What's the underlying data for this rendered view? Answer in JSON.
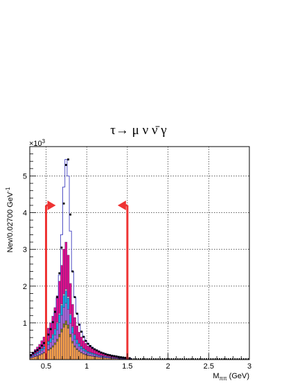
{
  "chart_data": {
    "type": "bar",
    "title": "τ→ μ ν ν̄ γ",
    "xlabel": "M_ππ (GeV)",
    "xlabel_main": "M",
    "xlabel_sub": "ππ",
    "xlabel_unit": "(GeV)",
    "ylabel": "Nev/0.02700 GeV⁻¹",
    "ylabel_main": "Nev/0.02700 GeV",
    "ylabel_sup": "-1",
    "y_exponent_label": "×10³",
    "y_exponent_base": "×10",
    "y_exponent_power": "3",
    "xlim": [
      0.3,
      3.0
    ],
    "ylim": [
      0,
      5.8
    ],
    "xticks": [
      0.5,
      1,
      1.5,
      2,
      2.5,
      3
    ],
    "xtick_labels": [
      "0.5",
      "1",
      "1.5",
      "2",
      "2.5",
      "3"
    ],
    "yticks": [
      1,
      2,
      3,
      4,
      5
    ],
    "ytick_labels": [
      "1",
      "2",
      "3",
      "4",
      "5"
    ],
    "grid": true,
    "bin_width": 0.027,
    "x_bin_centers": [
      0.3135,
      0.3405,
      0.3675,
      0.3945,
      0.4215,
      0.4485,
      0.4755,
      0.5025,
      0.5295,
      0.5565,
      0.5835,
      0.6105,
      0.6375,
      0.6645,
      0.6915,
      0.7185,
      0.7455,
      0.7725,
      0.7995,
      0.8265,
      0.8535,
      0.8805,
      0.9075,
      0.9345,
      0.9615,
      0.9885,
      1.0155,
      1.0425,
      1.0695,
      1.0965,
      1.1235,
      1.1505,
      1.1775,
      1.2045,
      1.2315,
      1.2585,
      1.2855,
      1.3125,
      1.3395,
      1.3665,
      1.3935,
      1.4205,
      1.4475,
      1.4745,
      1.5015,
      1.5285
    ],
    "series": [
      {
        "name": "",
        "type": "stacked",
        "color": "#f5a048",
        "values": [
          0.04,
          0.06,
          0.08,
          0.1,
          0.12,
          0.15,
          0.18,
          0.21,
          0.25,
          0.29,
          0.34,
          0.41,
          0.5,
          0.62,
          0.75,
          0.88,
          0.95,
          0.85,
          0.62,
          0.45,
          0.34,
          0.27,
          0.22,
          0.18,
          0.15,
          0.13,
          0.11,
          0.1,
          0.09,
          0.08,
          0.07,
          0.06,
          0.055,
          0.05,
          0.045,
          0.04,
          0.035,
          0.03,
          0.027,
          0.024,
          0.02,
          0.018,
          0.016,
          0.014,
          0.012,
          0.01
        ]
      },
      {
        "name": "",
        "type": "stacked",
        "color": "#7a7a1e",
        "values": [
          0.005,
          0.007,
          0.01,
          0.012,
          0.014,
          0.017,
          0.02,
          0.024,
          0.028,
          0.033,
          0.04,
          0.048,
          0.058,
          0.072,
          0.086,
          0.1,
          0.11,
          0.1,
          0.07,
          0.05,
          0.038,
          0.03,
          0.025,
          0.02,
          0.017,
          0.015,
          0.012,
          0.011,
          0.01,
          0.009,
          0.008,
          0.007,
          0.006,
          0.005,
          0.005,
          0.004,
          0.004,
          0.003,
          0.003,
          0.003,
          0.002,
          0.002,
          0.002,
          0.002,
          0.001,
          0.001
        ]
      },
      {
        "name": "",
        "type": "stacked",
        "color": "#a868d8",
        "values": [
          0.02,
          0.03,
          0.04,
          0.05,
          0.06,
          0.075,
          0.09,
          0.105,
          0.125,
          0.145,
          0.17,
          0.205,
          0.25,
          0.31,
          0.37,
          0.44,
          0.47,
          0.42,
          0.3,
          0.22,
          0.17,
          0.135,
          0.11,
          0.09,
          0.075,
          0.065,
          0.055,
          0.05,
          0.045,
          0.04,
          0.035,
          0.03,
          0.027,
          0.025,
          0.022,
          0.02,
          0.018,
          0.015,
          0.013,
          0.012,
          0.01,
          0.009,
          0.008,
          0.007,
          0.006,
          0.005
        ]
      },
      {
        "name": "",
        "type": "stacked",
        "color": "#1aa8e0",
        "values": [
          0.015,
          0.02,
          0.03,
          0.035,
          0.045,
          0.055,
          0.065,
          0.075,
          0.09,
          0.105,
          0.125,
          0.15,
          0.18,
          0.22,
          0.27,
          0.32,
          0.34,
          0.3,
          0.22,
          0.16,
          0.12,
          0.1,
          0.08,
          0.065,
          0.055,
          0.047,
          0.04,
          0.036,
          0.032,
          0.028,
          0.025,
          0.022,
          0.02,
          0.018,
          0.016,
          0.014,
          0.012,
          0.011,
          0.01,
          0.009,
          0.008,
          0.007,
          0.006,
          0.005,
          0.004,
          0.004
        ]
      },
      {
        "name": "",
        "type": "stacked",
        "color": "#c8c8c8",
        "values": [
          0.003,
          0.004,
          0.005,
          0.006,
          0.007,
          0.008,
          0.01,
          0.012,
          0.014,
          0.016,
          0.019,
          0.023,
          0.028,
          0.034,
          0.04,
          0.047,
          0.05,
          0.045,
          0.033,
          0.024,
          0.018,
          0.015,
          0.012,
          0.01,
          0.008,
          0.007,
          0.006,
          0.005,
          0.005,
          0.004,
          0.004,
          0.003,
          0.003,
          0.003,
          0.002,
          0.002,
          0.002,
          0.002,
          0.001,
          0.001,
          0.001,
          0.001,
          0.001,
          0.001,
          0.001,
          0.001
        ]
      },
      {
        "name": "",
        "type": "stacked",
        "color": "#e0108c",
        "values": [
          0.06,
          0.085,
          0.11,
          0.14,
          0.17,
          0.21,
          0.25,
          0.3,
          0.35,
          0.41,
          0.49,
          0.58,
          0.72,
          0.88,
          1.05,
          1.22,
          1.28,
          1.13,
          0.83,
          0.6,
          0.46,
          0.37,
          0.3,
          0.25,
          0.21,
          0.18,
          0.15,
          0.14,
          0.12,
          0.11,
          0.1,
          0.09,
          0.08,
          0.07,
          0.065,
          0.058,
          0.05,
          0.045,
          0.04,
          0.035,
          0.03,
          0.027,
          0.024,
          0.021,
          0.018,
          0.015
        ]
      },
      {
        "name": "",
        "type": "step",
        "color": "#4040c0",
        "values": [
          0.13,
          0.18,
          0.23,
          0.27,
          0.32,
          0.39,
          0.46,
          0.56,
          0.69,
          0.84,
          1.03,
          1.28,
          1.68,
          2.3,
          3.4,
          4.7,
          5.45,
          5.0,
          3.5,
          2.4,
          1.7,
          1.26,
          0.97,
          0.77,
          0.63,
          0.52,
          0.44,
          0.38,
          0.33,
          0.29,
          0.26,
          0.23,
          0.2,
          0.18,
          0.16,
          0.14,
          0.12,
          0.11,
          0.098,
          0.087,
          0.075,
          0.066,
          0.058,
          0.051,
          0.044,
          0.038
        ]
      },
      {
        "name": "",
        "type": "points",
        "color": "#000000",
        "values": [
          0.12,
          0.17,
          0.22,
          0.26,
          0.31,
          0.38,
          0.45,
          0.55,
          0.68,
          0.83,
          1.02,
          1.3,
          1.7,
          2.35,
          3.05,
          4.25,
          5.3,
          5.45,
          3.95,
          2.4,
          1.7,
          1.25,
          0.95,
          0.76,
          0.62,
          0.51,
          0.43,
          0.37,
          0.32,
          0.28,
          0.25,
          0.22,
          0.19,
          0.17,
          0.15,
          0.13,
          0.12,
          0.105,
          0.095,
          0.085,
          0.073,
          0.064,
          0.056,
          0.049,
          0.043,
          0.037
        ]
      }
    ],
    "tail_points": {
      "x_from": 1.5,
      "x_to": 3.0,
      "approx_level": 0.02
    },
    "annotations": [
      {
        "type": "cut-arrow",
        "x": 0.5,
        "direction": "right",
        "color": "#ee3333"
      },
      {
        "type": "cut-arrow",
        "x": 1.5,
        "direction": "left",
        "color": "#ee3333"
      }
    ],
    "arrow_level": 4.2
  }
}
